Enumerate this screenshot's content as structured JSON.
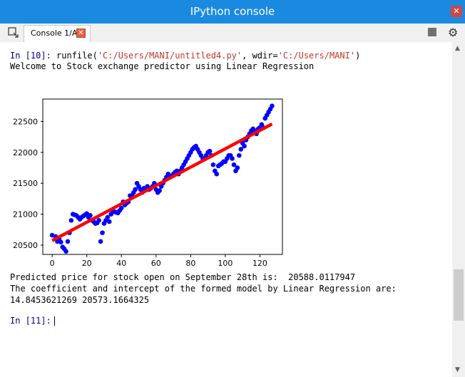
{
  "window": {
    "title": "IPython console"
  },
  "tab": {
    "label": "Console 1/A"
  },
  "console": {
    "in10_prompt": "In [10]:",
    "run_cmd_pre": " runfile(",
    "run_arg1": "'C:/Users/MANI/untitled4.py'",
    "run_mid": ", wdir=",
    "run_arg2": "'C:/Users/MANI'",
    "run_close": ")",
    "welcome": "Welcome to Stock exchange predictor using Linear Regression",
    "predicted": "Predicted price for stock open on September 28th is:  20588.0117947",
    "coef_line": "The coefficient and intercept of the formed model by Linear Regression are:",
    "coef_values": "14.8453621269 20573.1664325",
    "in11_prompt": "In [11]:"
  },
  "chart_data": {
    "type": "scatter",
    "xlim": [
      -5,
      133
    ],
    "ylim": [
      20350,
      22850
    ],
    "x_ticks": [
      0,
      20,
      40,
      60,
      80,
      100,
      120
    ],
    "y_ticks": [
      20500,
      21000,
      21500,
      22000,
      22500
    ],
    "points_color": "#0000ff",
    "line_color": "#ff0000",
    "regression": {
      "x": [
        0,
        127
      ],
      "y": [
        20573.17,
        22458.53
      ]
    },
    "points": [
      [
        0,
        20660
      ],
      [
        2,
        20640
      ],
      [
        3,
        20560
      ],
      [
        4,
        20600
      ],
      [
        5,
        20550
      ],
      [
        6,
        20470
      ],
      [
        7,
        20440
      ],
      [
        8,
        20400
      ],
      [
        9,
        20560
      ],
      [
        10,
        20700
      ],
      [
        11,
        20900
      ],
      [
        12,
        21000
      ],
      [
        13,
        20990
      ],
      [
        14,
        20980
      ],
      [
        15,
        20950
      ],
      [
        16,
        20920
      ],
      [
        17,
        20950
      ],
      [
        18,
        20970
      ],
      [
        19,
        20990
      ],
      [
        20,
        21010
      ],
      [
        21,
        20950
      ],
      [
        22,
        20980
      ],
      [
        23,
        20900
      ],
      [
        24,
        20880
      ],
      [
        25,
        20850
      ],
      [
        26,
        20860
      ],
      [
        27,
        20900
      ],
      [
        28,
        20560
      ],
      [
        29,
        20700
      ],
      [
        30,
        20850
      ],
      [
        31,
        20900
      ],
      [
        32,
        20950
      ],
      [
        33,
        20880
      ],
      [
        34,
        21000
      ],
      [
        35,
        21050
      ],
      [
        36,
        21040
      ],
      [
        37,
        21030
      ],
      [
        38,
        21020
      ],
      [
        39,
        21060
      ],
      [
        40,
        21100
      ],
      [
        41,
        21200
      ],
      [
        42,
        21150
      ],
      [
        43,
        21180
      ],
      [
        44,
        21200
      ],
      [
        45,
        21300
      ],
      [
        46,
        21300
      ],
      [
        47,
        21350
      ],
      [
        48,
        21400
      ],
      [
        49,
        21500
      ],
      [
        50,
        21450
      ],
      [
        51,
        21400
      ],
      [
        52,
        21350
      ],
      [
        53,
        21420
      ],
      [
        54,
        21400
      ],
      [
        55,
        21450
      ],
      [
        56,
        21400
      ],
      [
        57,
        21420
      ],
      [
        58,
        21450
      ],
      [
        59,
        21500
      ],
      [
        60,
        21400
      ],
      [
        61,
        21350
      ],
      [
        62,
        21380
      ],
      [
        63,
        21450
      ],
      [
        64,
        21500
      ],
      [
        65,
        21550
      ],
      [
        66,
        21600
      ],
      [
        67,
        21650
      ],
      [
        68,
        21600
      ],
      [
        69,
        21620
      ],
      [
        70,
        21650
      ],
      [
        71,
        21680
      ],
      [
        72,
        21700
      ],
      [
        73,
        21650
      ],
      [
        74,
        21700
      ],
      [
        75,
        21750
      ],
      [
        76,
        21800
      ],
      [
        77,
        21850
      ],
      [
        78,
        21900
      ],
      [
        79,
        21950
      ],
      [
        80,
        22000
      ],
      [
        81,
        22050
      ],
      [
        82,
        22080
      ],
      [
        83,
        22100
      ],
      [
        84,
        22050
      ],
      [
        85,
        22000
      ],
      [
        86,
        21950
      ],
      [
        87,
        21900
      ],
      [
        88,
        21900
      ],
      [
        89,
        21950
      ],
      [
        90,
        22000
      ],
      [
        91,
        22020
      ],
      [
        92,
        21950
      ],
      [
        93,
        21800
      ],
      [
        94,
        21700
      ],
      [
        95,
        21650
      ],
      [
        96,
        21780
      ],
      [
        97,
        21800
      ],
      [
        98,
        21820
      ],
      [
        99,
        21850
      ],
      [
        100,
        21850
      ],
      [
        101,
        21900
      ],
      [
        102,
        21950
      ],
      [
        103,
        21950
      ],
      [
        104,
        21900
      ],
      [
        105,
        21800
      ],
      [
        106,
        21700
      ],
      [
        107,
        21750
      ],
      [
        108,
        21950
      ],
      [
        109,
        22050
      ],
      [
        110,
        22150
      ],
      [
        111,
        22100
      ],
      [
        112,
        22200
      ],
      [
        113,
        22250
      ],
      [
        114,
        22300
      ],
      [
        115,
        22350
      ],
      [
        116,
        22380
      ],
      [
        117,
        22350
      ],
      [
        118,
        22300
      ],
      [
        119,
        22380
      ],
      [
        120,
        22400
      ],
      [
        121,
        22450
      ],
      [
        122,
        22400
      ],
      [
        123,
        22550
      ],
      [
        124,
        22600
      ],
      [
        125,
        22650
      ],
      [
        126,
        22700
      ],
      [
        127,
        22750
      ]
    ]
  }
}
